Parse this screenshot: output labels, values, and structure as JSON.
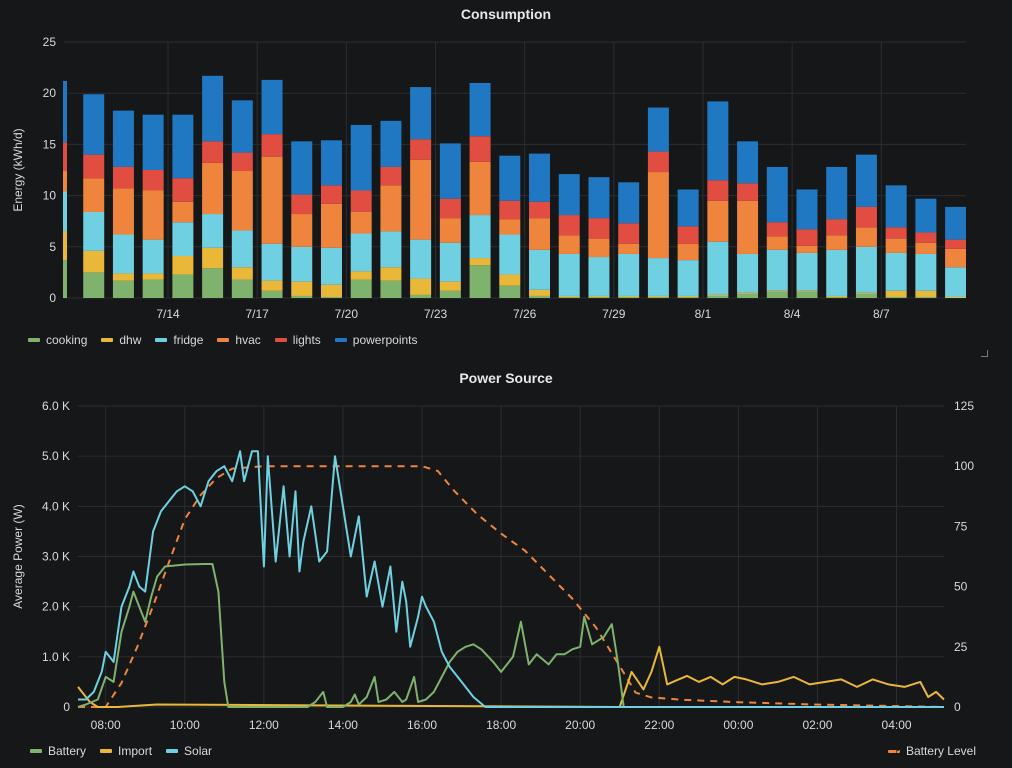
{
  "panels": {
    "consumption_title": "Consumption",
    "power_title": "Power Source"
  },
  "colors": {
    "cooking": "#7eb26d",
    "dhw": "#eab839",
    "fridge": "#6ed0e0",
    "hvac": "#ef843c",
    "lights": "#e24d42",
    "powerpoints": "#1f78c1",
    "battery": "#7eb26d",
    "import": "#eab839",
    "solar": "#6ed0e0",
    "battery_level": "#ef843c",
    "grid": "#2c2d30",
    "axis_text": "#d8d9da"
  },
  "chart_data": [
    {
      "type": "bar",
      "stacked": true,
      "title": "Consumption",
      "ylabel": "Energy (kWh/d)",
      "ylim": [
        0,
        25
      ],
      "yticks": [
        0,
        5,
        10,
        15,
        20,
        25
      ],
      "xtick_labels": [
        "7/14",
        "7/17",
        "7/20",
        "7/23",
        "7/26",
        "7/29",
        "8/1",
        "8/4",
        "8/7"
      ],
      "xtick_day_index": [
        3,
        6,
        9,
        12,
        15,
        18,
        21,
        24,
        27
      ],
      "legend_position": "bottom-left",
      "grid": true,
      "series": [
        {
          "name": "cooking",
          "values": [
            3.7,
            2.5,
            1.7,
            1.8,
            2.3,
            2.9,
            1.8,
            0.7,
            0.2,
            0.1,
            1.8,
            1.7,
            0.3,
            0.7,
            3.2,
            1.2,
            0.2,
            0.1,
            0.1,
            0.1,
            0.1,
            0.1,
            0.2,
            0.4,
            0.6,
            0.6,
            0.1,
            0.4,
            0.1,
            0.1,
            0.0
          ]
        },
        {
          "name": "dhw",
          "values": [
            2.8,
            2.1,
            0.7,
            0.6,
            1.8,
            2.0,
            1.2,
            1.0,
            1.4,
            1.2,
            0.8,
            1.3,
            1.6,
            0.9,
            0.7,
            1.1,
            0.6,
            0.1,
            0.1,
            0.1,
            0.1,
            0.1,
            0.1,
            0.1,
            0.1,
            0.1,
            0.1,
            0.1,
            0.6,
            0.6,
            0.1
          ]
        },
        {
          "name": "fridge",
          "values": [
            3.9,
            3.8,
            3.8,
            3.3,
            3.3,
            3.3,
            3.6,
            3.6,
            3.4,
            3.6,
            3.7,
            3.5,
            3.8,
            3.8,
            4.2,
            3.9,
            3.9,
            4.1,
            3.8,
            4.1,
            3.7,
            3.5,
            5.2,
            3.8,
            4.0,
            3.7,
            4.5,
            4.5,
            3.7,
            3.6,
            2.9
          ]
        },
        {
          "name": "hvac",
          "values": [
            2.0,
            3.3,
            4.5,
            4.8,
            2.0,
            5.0,
            5.8,
            8.5,
            3.2,
            4.3,
            2.1,
            4.5,
            7.8,
            2.4,
            5.2,
            1.5,
            3.1,
            1.8,
            1.8,
            1.0,
            8.4,
            1.6,
            4.0,
            5.2,
            1.3,
            0.7,
            1.4,
            1.9,
            1.4,
            1.1,
            1.8
          ]
        },
        {
          "name": "lights",
          "values": [
            2.8,
            2.3,
            2.1,
            2.0,
            2.3,
            2.1,
            1.8,
            2.2,
            1.9,
            1.8,
            2.1,
            1.8,
            2.0,
            1.9,
            2.5,
            1.8,
            1.6,
            2.0,
            2.0,
            2.0,
            2.0,
            1.7,
            2.0,
            1.7,
            1.4,
            1.6,
            1.6,
            2.0,
            1.1,
            1.0,
            0.9
          ]
        },
        {
          "name": "powerpoints",
          "values": [
            6.0,
            5.9,
            5.5,
            5.4,
            6.2,
            6.4,
            5.1,
            5.3,
            5.2,
            4.4,
            6.4,
            4.5,
            5.1,
            5.4,
            5.2,
            4.4,
            4.7,
            4.0,
            4.0,
            4.0,
            4.3,
            3.6,
            7.7,
            4.1,
            5.4,
            3.9,
            5.1,
            5.1,
            4.1,
            3.3,
            3.2
          ]
        }
      ]
    },
    {
      "type": "line",
      "title": "Power Source",
      "ylabel": "Average Power (W)",
      "ylim": [
        0,
        6000
      ],
      "ytick_labels": [
        "0",
        "1.0 K",
        "2.0 K",
        "3.0 K",
        "4.0 K",
        "5.0 K",
        "6.0 K"
      ],
      "y2lim": [
        0,
        125
      ],
      "y2ticks": [
        0,
        25,
        50,
        75,
        100,
        125
      ],
      "xlim_hours": [
        7.3,
        29.2
      ],
      "xtick_labels": [
        "08:00",
        "10:00",
        "12:00",
        "14:00",
        "16:00",
        "18:00",
        "20:00",
        "22:00",
        "00:00",
        "02:00",
        "04:00"
      ],
      "legend_position": "bottom",
      "grid": true,
      "series": [
        {
          "name": "Battery",
          "axis": "left",
          "style": "solid",
          "points": [
            [
              7.3,
              0
            ],
            [
              7.5,
              50
            ],
            [
              7.8,
              150
            ],
            [
              8.0,
              600
            ],
            [
              8.2,
              500
            ],
            [
              8.4,
              1500
            ],
            [
              8.6,
              2000
            ],
            [
              8.7,
              2300
            ],
            [
              8.85,
              2000
            ],
            [
              9.0,
              1700
            ],
            [
              9.15,
              2200
            ],
            [
              9.3,
              2600
            ],
            [
              9.5,
              2800
            ],
            [
              10.0,
              2840
            ],
            [
              10.5,
              2850
            ],
            [
              10.7,
              2850
            ],
            [
              10.85,
              2300
            ],
            [
              11.0,
              500
            ],
            [
              11.1,
              0
            ],
            [
              13.1,
              0
            ],
            [
              13.3,
              100
            ],
            [
              13.5,
              300
            ],
            [
              13.6,
              0
            ],
            [
              14.0,
              0
            ],
            [
              14.2,
              100
            ],
            [
              14.3,
              250
            ],
            [
              14.4,
              50
            ],
            [
              14.6,
              200
            ],
            [
              14.8,
              600
            ],
            [
              14.9,
              100
            ],
            [
              15.1,
              150
            ],
            [
              15.3,
              300
            ],
            [
              15.5,
              100
            ],
            [
              15.6,
              150
            ],
            [
              15.8,
              600
            ],
            [
              15.9,
              100
            ],
            [
              16.1,
              150
            ],
            [
              16.3,
              300
            ],
            [
              16.5,
              600
            ],
            [
              16.7,
              900
            ],
            [
              16.9,
              1100
            ],
            [
              17.1,
              1200
            ],
            [
              17.3,
              1250
            ],
            [
              17.5,
              1150
            ],
            [
              17.8,
              900
            ],
            [
              18.0,
              700
            ],
            [
              18.3,
              1000
            ],
            [
              18.5,
              1700
            ],
            [
              18.7,
              850
            ],
            [
              18.9,
              1050
            ],
            [
              19.2,
              850
            ],
            [
              19.4,
              1050
            ],
            [
              19.6,
              1050
            ],
            [
              19.8,
              1150
            ],
            [
              20.0,
              1200
            ],
            [
              20.1,
              1800
            ],
            [
              20.3,
              1250
            ],
            [
              20.6,
              1400
            ],
            [
              20.8,
              1650
            ],
            [
              20.95,
              900
            ],
            [
              21.1,
              0
            ],
            [
              29.2,
              0
            ]
          ]
        },
        {
          "name": "Import",
          "axis": "left",
          "style": "solid",
          "points": [
            [
              7.3,
              400
            ],
            [
              7.6,
              100
            ],
            [
              7.8,
              0
            ],
            [
              8.3,
              0
            ],
            [
              9.3,
              50
            ],
            [
              21.0,
              0
            ],
            [
              21.3,
              700
            ],
            [
              21.6,
              350
            ],
            [
              21.8,
              700
            ],
            [
              22.0,
              1200
            ],
            [
              22.2,
              450
            ],
            [
              22.4,
              520
            ],
            [
              22.7,
              620
            ],
            [
              23.0,
              500
            ],
            [
              23.3,
              600
            ],
            [
              23.6,
              450
            ],
            [
              23.9,
              600
            ],
            [
              24.2,
              550
            ],
            [
              24.6,
              450
            ],
            [
              25.0,
              500
            ],
            [
              25.4,
              600
            ],
            [
              25.8,
              450
            ],
            [
              26.2,
              500
            ],
            [
              26.6,
              550
            ],
            [
              27.0,
              400
            ],
            [
              27.4,
              550
            ],
            [
              27.8,
              450
            ],
            [
              28.2,
              400
            ],
            [
              28.6,
              500
            ],
            [
              28.8,
              200
            ],
            [
              29.0,
              300
            ],
            [
              29.2,
              150
            ]
          ]
        },
        {
          "name": "Solar",
          "axis": "left",
          "style": "solid",
          "points": [
            [
              7.3,
              150
            ],
            [
              7.5,
              150
            ],
            [
              7.7,
              300
            ],
            [
              7.9,
              700
            ],
            [
              8.0,
              1100
            ],
            [
              8.2,
              900
            ],
            [
              8.4,
              2000
            ],
            [
              8.6,
              2400
            ],
            [
              8.7,
              2700
            ],
            [
              8.85,
              2400
            ],
            [
              9.0,
              2300
            ],
            [
              9.2,
              3500
            ],
            [
              9.4,
              3900
            ],
            [
              9.6,
              4100
            ],
            [
              9.8,
              4300
            ],
            [
              10.0,
              4400
            ],
            [
              10.2,
              4300
            ],
            [
              10.4,
              4000
            ],
            [
              10.6,
              4500
            ],
            [
              10.8,
              4700
            ],
            [
              11.0,
              4800
            ],
            [
              11.2,
              4500
            ],
            [
              11.4,
              5100
            ],
            [
              11.5,
              4500
            ],
            [
              11.7,
              5100
            ],
            [
              11.85,
              5100
            ],
            [
              12.0,
              2800
            ],
            [
              12.1,
              5000
            ],
            [
              12.3,
              2900
            ],
            [
              12.5,
              4400
            ],
            [
              12.65,
              3000
            ],
            [
              12.8,
              4300
            ],
            [
              12.9,
              2700
            ],
            [
              13.0,
              3300
            ],
            [
              13.2,
              4000
            ],
            [
              13.4,
              2900
            ],
            [
              13.6,
              3100
            ],
            [
              13.8,
              5000
            ],
            [
              14.0,
              4000
            ],
            [
              14.2,
              3000
            ],
            [
              14.4,
              3800
            ],
            [
              14.6,
              2200
            ],
            [
              14.8,
              2900
            ],
            [
              15.0,
              2000
            ],
            [
              15.2,
              2800
            ],
            [
              15.35,
              1500
            ],
            [
              15.5,
              2500
            ],
            [
              15.6,
              2100
            ],
            [
              15.7,
              1200
            ],
            [
              15.9,
              1800
            ],
            [
              16.0,
              2200
            ],
            [
              16.1,
              2000
            ],
            [
              16.3,
              1700
            ],
            [
              16.5,
              1100
            ],
            [
              16.7,
              800
            ],
            [
              17.0,
              500
            ],
            [
              17.3,
              200
            ],
            [
              17.6,
              0
            ],
            [
              29.2,
              0
            ]
          ]
        },
        {
          "name": "Battery Level",
          "axis": "right",
          "style": "dashed",
          "points": [
            [
              7.3,
              0
            ],
            [
              8.0,
              0
            ],
            [
              8.4,
              10
            ],
            [
              8.8,
              25
            ],
            [
              9.2,
              42
            ],
            [
              9.6,
              60
            ],
            [
              10.0,
              78
            ],
            [
              10.4,
              88
            ],
            [
              10.8,
              95
            ],
            [
              11.2,
              99
            ],
            [
              12.0,
              100
            ],
            [
              13.0,
              100
            ],
            [
              14.0,
              100
            ],
            [
              15.0,
              100
            ],
            [
              16.0,
              100
            ],
            [
              16.4,
              98
            ],
            [
              16.8,
              90
            ],
            [
              17.4,
              80
            ],
            [
              18.0,
              72
            ],
            [
              18.6,
              65
            ],
            [
              19.2,
              55
            ],
            [
              19.8,
              45
            ],
            [
              20.4,
              33
            ],
            [
              21.0,
              17
            ],
            [
              21.4,
              6
            ],
            [
              21.8,
              4
            ],
            [
              22.6,
              3
            ],
            [
              24.0,
              2
            ],
            [
              26.0,
              1
            ],
            [
              29.2,
              0
            ]
          ]
        }
      ]
    }
  ]
}
